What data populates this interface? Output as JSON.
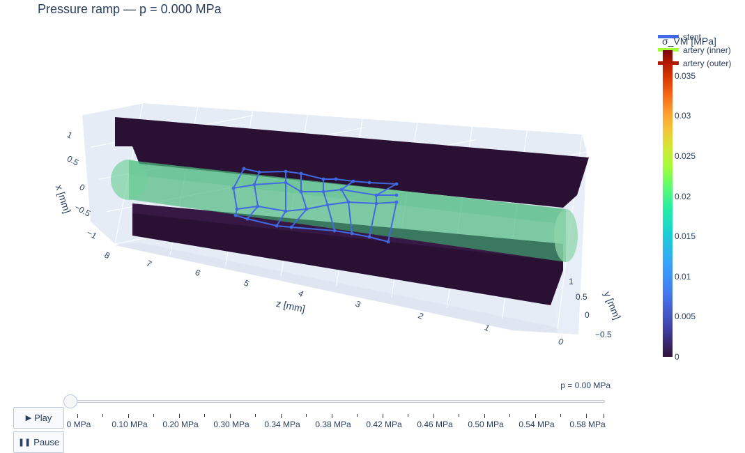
{
  "title": "Pressure ramp — p = 0.000 MPa",
  "colors": {
    "stent": "#4169e1",
    "artery_inner": "#3cb371",
    "artery_outer": "#2a1033",
    "plot_bg": "#e5ecf6",
    "grid": "#ffffff"
  },
  "legend": {
    "items": [
      {
        "label": "stent",
        "color": "#4169e1"
      },
      {
        "label": "artery (inner)",
        "color": "#a4fc3b"
      },
      {
        "label": "artery (outer)",
        "color": "#b11901"
      }
    ]
  },
  "colorbar": {
    "title": "σ_VM [MPa]",
    "ticks": [
      "0",
      "0.005",
      "0.01",
      "0.015",
      "0.02",
      "0.025",
      "0.03",
      "0.035"
    ],
    "tick_values": [
      0,
      0.005,
      0.01,
      0.015,
      0.02,
      0.025,
      0.03,
      0.035
    ],
    "max": 0.0382
  },
  "chart_data": {
    "type": "mesh3d",
    "title": "Pressure ramp — p = 0.000 MPa",
    "scene": {
      "xaxis": {
        "title": "x [mm]",
        "ticks": [
          "1",
          "0.5",
          "0",
          "−0.5",
          "−1"
        ],
        "range": [
          -1.2,
          1.2
        ]
      },
      "yaxis": {
        "title": "y [mm]",
        "ticks": [
          "1",
          "0.5",
          "0",
          "−0.5"
        ],
        "range": [
          -0.7,
          1.2
        ]
      },
      "zaxis": {
        "title": "z [mm]",
        "ticks": [
          "8",
          "7",
          "6",
          "5",
          "4",
          "3",
          "2",
          "1",
          "0"
        ],
        "range": [
          0,
          8
        ]
      }
    },
    "series": [
      {
        "name": "stent",
        "kind": "wireframe",
        "color": "#4169e1",
        "z_extent": [
          3.4,
          5.2
        ]
      },
      {
        "name": "artery (inner)",
        "kind": "surface",
        "color": "#3cb371",
        "sigma_vm": 0
      },
      {
        "name": "artery (outer)",
        "kind": "surface",
        "color": "#2a1033",
        "sigma_vm": 0
      }
    ],
    "pressure_MPa": 0.0
  },
  "controls": {
    "play_label": "Play",
    "pause_label": "Pause",
    "slider_current": "p = 0.00 MPa",
    "slider_labels": [
      "0 MPa",
      "0.10 MPa",
      "0.20 MPa",
      "0.30 MPa",
      "0.34 MPa",
      "0.38 MPa",
      "0.42 MPa",
      "0.46 MPa",
      "0.50 MPa",
      "0.54 MPa",
      "0.58 MPa"
    ],
    "slider_value_index": 0
  }
}
